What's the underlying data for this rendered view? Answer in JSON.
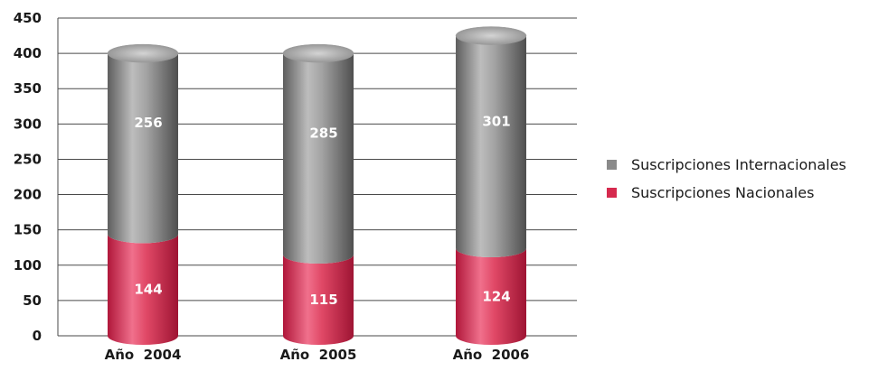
{
  "chart_data": {
    "type": "bar",
    "stacked": true,
    "style": "3d-cylinder",
    "categories": [
      "Año  2004",
      "Año  2005",
      "Año  2006"
    ],
    "series": [
      {
        "name": "Suscripciones Nacionales",
        "values": [
          144,
          115,
          124
        ],
        "color": "#d62a4e"
      },
      {
        "name": "Suscripciones Internacionales",
        "values": [
          256,
          285,
          301
        ],
        "color": "#8a8a8a"
      }
    ],
    "ylim": [
      0,
      450
    ],
    "yticks": [
      "0",
      "50",
      "100",
      "150",
      "200",
      "250",
      "300",
      "350",
      "400",
      "450"
    ],
    "grid": true,
    "legend": "right",
    "legend_order": [
      "Suscripciones Internacionales",
      "Suscripciones Nacionales"
    ]
  }
}
